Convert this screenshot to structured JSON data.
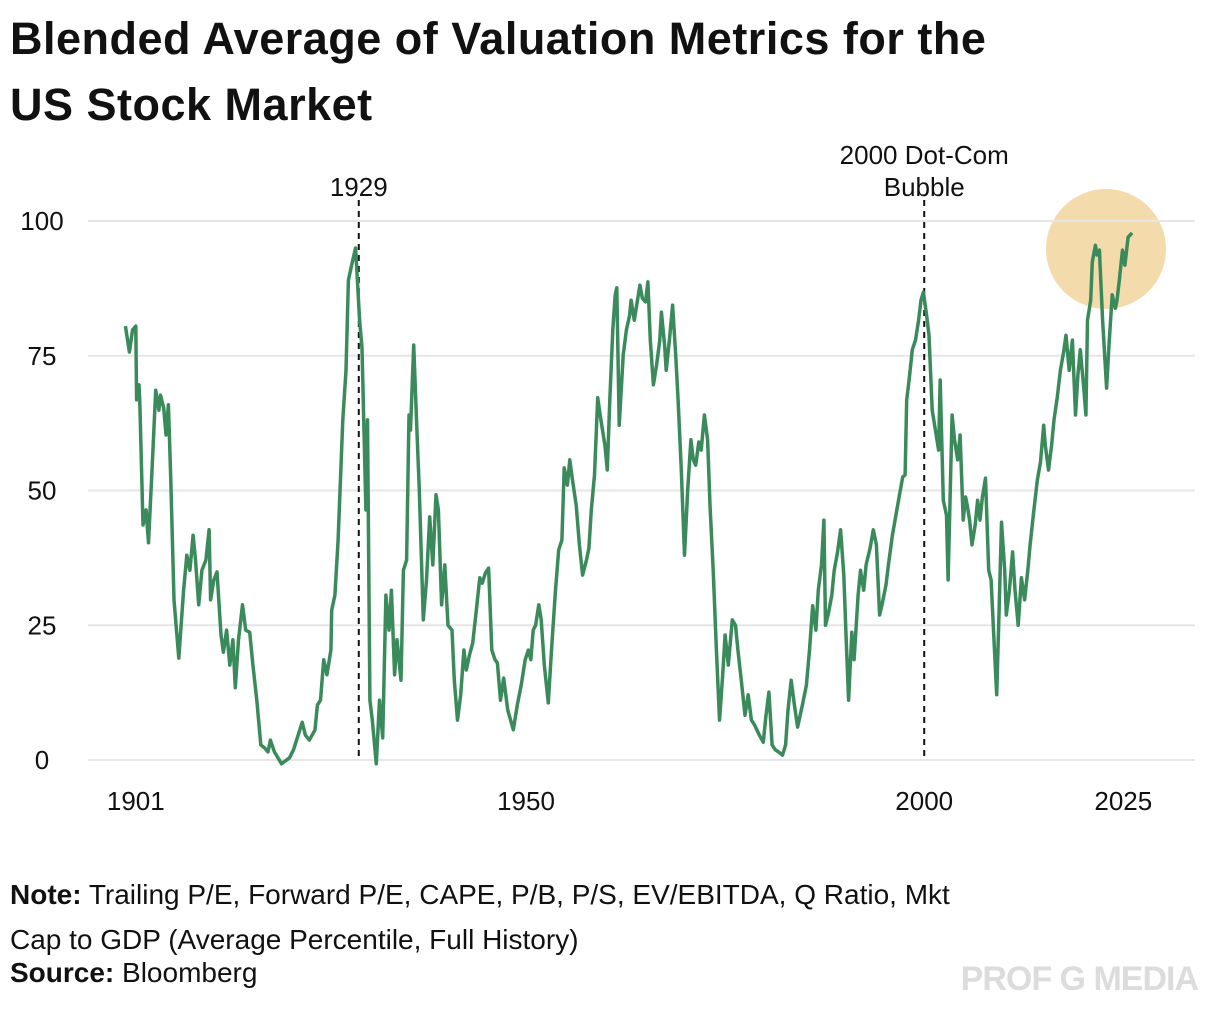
{
  "chart_data": {
    "type": "line",
    "title": "Blended Average of Valuation Metrics for the US Stock Market",
    "x": [
      1899.7,
      1900.2,
      1900.6,
      1901.0,
      1901.1,
      1901.4,
      1901.5,
      1901.9,
      1902.3,
      1902.6,
      1903.1,
      1903.5,
      1903.9,
      1904.1,
      1904.5,
      1904.8,
      1905.1,
      1905.4,
      1905.8,
      1906.4,
      1907.0,
      1907.4,
      1907.8,
      1908.2,
      1908.5,
      1908.9,
      1909.3,
      1909.8,
      1910.2,
      1910.4,
      1910.8,
      1911.2,
      1911.7,
      1912.0,
      1912.4,
      1912.8,
      1913.2,
      1913.5,
      1913.9,
      1914.4,
      1914.8,
      1915.3,
      1915.7,
      1916.2,
      1916.7,
      1917.2,
      1917.6,
      1917.9,
      1918.4,
      1919.3,
      1920.3,
      1920.8,
      1921.9,
      1922.3,
      1922.8,
      1923.5,
      1923.8,
      1924.2,
      1924.6,
      1925.0,
      1925.5,
      1925.6,
      1926.0,
      1926.4,
      1927.0,
      1927.4,
      1927.7,
      1928.1,
      1928.6,
      1929.1,
      1929.4,
      1929.9,
      1930.1,
      1930.4,
      1930.7,
      1931.2,
      1931.6,
      1932.0,
      1932.4,
      1932.8,
      1933.1,
      1933.5,
      1933.8,
      1934.3,
      1934.6,
      1935.0,
      1935.3,
      1935.5,
      1935.9,
      1936.3,
      1936.6,
      1937.1,
      1937.5,
      1937.9,
      1938.3,
      1938.7,
      1939.0,
      1939.4,
      1939.8,
      1940.2,
      1940.7,
      1941.0,
      1941.4,
      1941.8,
      1942.2,
      1942.5,
      1942.9,
      1943.3,
      1943.7,
      1944.2,
      1944.5,
      1944.9,
      1945.3,
      1945.7,
      1946.1,
      1946.4,
      1946.8,
      1947.2,
      1947.7,
      1948.4,
      1948.9,
      1949.4,
      1949.9,
      1950.3,
      1950.6,
      1950.9,
      1951.2,
      1951.6,
      1951.9,
      1952.3,
      1952.8,
      1953.2,
      1953.7,
      1954.1,
      1954.5,
      1954.8,
      1955.2,
      1955.5,
      1955.8,
      1956.3,
      1956.7,
      1957.1,
      1957.6,
      1957.9,
      1958.2,
      1958.6,
      1959.0,
      1959.4,
      1959.9,
      1960.2,
      1960.5,
      1960.9,
      1961.2,
      1961.4,
      1961.7,
      1962.2,
      1962.6,
      1963.0,
      1963.2,
      1963.6,
      1963.9,
      1964.3,
      1964.6,
      1965.0,
      1965.3,
      1965.6,
      1966.0,
      1966.4,
      1966.8,
      1967.0,
      1967.4,
      1967.6,
      1968.0,
      1968.4,
      1968.8,
      1969.1,
      1969.5,
      1969.9,
      1970.3,
      1970.7,
      1971.0,
      1971.3,
      1971.7,
      1972.0,
      1972.4,
      1972.8,
      1973.1,
      1973.5,
      1973.9,
      1974.3,
      1974.7,
      1975.0,
      1975.4,
      1975.9,
      1976.3,
      1976.6,
      1977.1,
      1977.5,
      1977.9,
      1978.3,
      1978.7,
      1979.3,
      1979.8,
      1980.1,
      1980.5,
      1980.9,
      1981.3,
      1981.7,
      1982.2,
      1982.6,
      1982.9,
      1983.3,
      1983.7,
      1984.1,
      1984.7,
      1985.2,
      1985.6,
      1986.0,
      1986.4,
      1986.7,
      1987.1,
      1987.4,
      1987.6,
      1988.0,
      1988.4,
      1988.7,
      1989.1,
      1989.5,
      1989.9,
      1990.2,
      1990.5,
      1990.9,
      1991.2,
      1991.7,
      1992.0,
      1992.4,
      1992.7,
      1993.2,
      1993.6,
      1994.0,
      1994.4,
      1994.7,
      1995.2,
      1995.5,
      1996.0,
      1996.4,
      1996.9,
      1997.3,
      1997.6,
      1997.8,
      1998.1,
      1998.5,
      1998.9,
      1999.3,
      1999.6,
      1999.9,
      2000.3,
      2000.6,
      2001.0,
      2001.4,
      2001.8,
      2002.0,
      2002.4,
      2002.8,
      2003.0,
      2003.5,
      2003.8,
      2004.2,
      2004.5,
      2004.9,
      2005.2,
      2005.4,
      2005.7,
      2006.0,
      2006.4,
      2006.7,
      2007.0,
      2007.3,
      2007.7,
      2008.1,
      2008.4,
      2008.7,
      2009.1,
      2009.4,
      2009.7,
      2010.1,
      2010.3,
      2010.7,
      2011.1,
      2011.4,
      2011.8,
      2012.2,
      2012.6,
      2013.0,
      2013.3,
      2013.7,
      2014.2,
      2014.6,
      2015.0,
      2015.2,
      2015.6,
      2016.0,
      2016.3,
      2016.7,
      2017.1,
      2017.5,
      2017.8,
      2018.2,
      2018.6,
      2019.0,
      2019.3,
      2019.6,
      2020.0,
      2020.3,
      2020.5,
      2020.9,
      2021.1,
      2021.5,
      2021.7,
      2022.0,
      2022.4,
      2022.9,
      2023.2,
      2023.6,
      2024.0,
      2024.2,
      2024.5,
      2024.9,
      2025.2,
      2025.6,
      2026.1
    ],
    "series": [
      {
        "color": "#3b8a5c",
        "values": [
          80.5,
          75.7,
          79.8,
          80.5,
          66.8,
          69.6,
          66.4,
          43.6,
          46.4,
          40.3,
          55.7,
          68.6,
          64.9,
          67.7,
          65.3,
          60.3,
          65.9,
          51.9,
          29.7,
          18.9,
          31.5,
          38.0,
          35.2,
          41.7,
          37.1,
          28.8,
          35.2,
          37.1,
          42.7,
          29.7,
          33.4,
          34.9,
          23.2,
          20.0,
          24.1,
          17.6,
          22.3,
          13.4,
          22.3,
          28.8,
          24.1,
          23.7,
          17.6,
          11.1,
          2.8,
          2.2,
          1.5,
          3.7,
          1.5,
          -0.7,
          0.4,
          1.9,
          7.0,
          4.6,
          3.7,
          5.6,
          10.2,
          11.1,
          18.6,
          15.8,
          20.4,
          27.8,
          30.6,
          40.8,
          63.1,
          72.3,
          89.0,
          91.8,
          95.0,
          81.6,
          76.4,
          46.4,
          63.1,
          11.1,
          7.4,
          -0.7,
          11.1,
          4.1,
          30.6,
          24.1,
          31.5,
          15.8,
          22.3,
          14.8,
          35.2,
          37.1,
          64.0,
          61.2,
          77.0,
          61.2,
          50.1,
          26.0,
          33.4,
          45.1,
          36.2,
          49.2,
          46.4,
          28.8,
          36.2,
          25.0,
          24.1,
          14.8,
          7.4,
          12.1,
          20.4,
          16.7,
          19.5,
          21.7,
          26.9,
          33.8,
          32.8,
          34.7,
          35.6,
          20.4,
          18.6,
          18.0,
          11.1,
          15.2,
          9.3,
          5.6,
          10.2,
          13.9,
          18.6,
          20.4,
          18.6,
          24.1,
          25.0,
          28.8,
          26.0,
          17.6,
          10.6,
          20.4,
          31.5,
          39.0,
          40.8,
          54.2,
          51.0,
          55.7,
          52.3,
          47.3,
          39.9,
          34.3,
          37.1,
          39.3,
          46.4,
          52.9,
          67.2,
          63.1,
          58.4,
          53.8,
          65.9,
          79.8,
          86.3,
          87.6,
          62.1,
          75.1,
          79.8,
          82.5,
          85.3,
          81.6,
          84.4,
          88.1,
          85.7,
          85.0,
          88.7,
          77.9,
          69.6,
          73.3,
          77.9,
          83.1,
          77.0,
          72.3,
          77.9,
          84.4,
          75.1,
          66.8,
          53.8,
          38.0,
          50.1,
          59.4,
          55.7,
          54.7,
          59.0,
          57.5,
          64.0,
          59.4,
          47.3,
          35.2,
          20.4,
          7.4,
          15.8,
          23.2,
          17.6,
          26.0,
          25.0,
          20.4,
          13.9,
          8.3,
          12.1,
          7.4,
          6.5,
          4.6,
          3.3,
          7.8,
          12.6,
          2.8,
          1.9,
          1.5,
          0.9,
          2.8,
          9.3,
          14.8,
          10.2,
          6.1,
          10.2,
          13.9,
          20.4,
          28.6,
          24.1,
          31.5,
          36.2,
          44.5,
          25.0,
          27.5,
          30.6,
          35.2,
          38.4,
          42.7,
          34.3,
          22.3,
          11.1,
          23.7,
          18.6,
          30.6,
          35.2,
          31.5,
          36.2,
          39.3,
          42.7,
          39.9,
          26.9,
          28.8,
          32.5,
          36.2,
          41.7,
          45.1,
          49.2,
          52.5,
          52.9,
          66.8,
          70.5,
          76.1,
          77.9,
          81.6,
          85.3,
          86.8,
          82.5,
          78.8,
          64.9,
          61.2,
          57.5,
          70.5,
          48.2,
          45.4,
          33.4,
          64.0,
          59.4,
          55.7,
          60.3,
          44.5,
          48.8,
          47.3,
          44.5,
          39.9,
          43.6,
          48.2,
          44.5,
          48.8,
          52.3,
          35.2,
          33.4,
          24.1,
          12.1,
          27.8,
          44.1,
          35.2,
          26.9,
          31.5,
          38.6,
          31.5,
          25.0,
          33.8,
          29.7,
          35.2,
          39.9,
          45.4,
          51.9,
          55.3,
          62.1,
          58.4,
          53.8,
          58.4,
          63.1,
          67.2,
          72.3,
          75.7,
          78.8,
          72.3,
          77.9,
          64.0,
          71.4,
          76.1,
          69.6,
          64.0,
          81.6,
          85.3,
          92.4,
          95.5,
          93.7,
          94.6,
          81.6,
          69.0,
          77.0,
          86.3,
          83.8,
          85.3,
          89.0,
          94.6,
          91.8,
          97.0,
          97.8
        ]
      }
    ],
    "xlim": [
      1895,
      2034
    ],
    "xticks": [
      1901,
      1950,
      2000,
      2025
    ],
    "ylim": [
      0,
      100
    ],
    "yticks": [
      0,
      25,
      50,
      75,
      100
    ],
    "grid": true,
    "annotations": [
      {
        "x": 1929,
        "lines": [
          "1929"
        ]
      },
      {
        "x": 2000,
        "lines": [
          "2000 Dot-Com",
          "Bubble"
        ]
      }
    ]
  },
  "footer": {
    "note_label": "Note:",
    "note": "Trailing P/E, Forward P/E, CAPE, P/B, P/S, EV/EBITDA, Q Ratio, Mkt Cap to GDP (Average Percentile, Full History)",
    "source_label": "Source:",
    "source": "Bloomberg",
    "watermark": "PROF G MEDIA"
  }
}
